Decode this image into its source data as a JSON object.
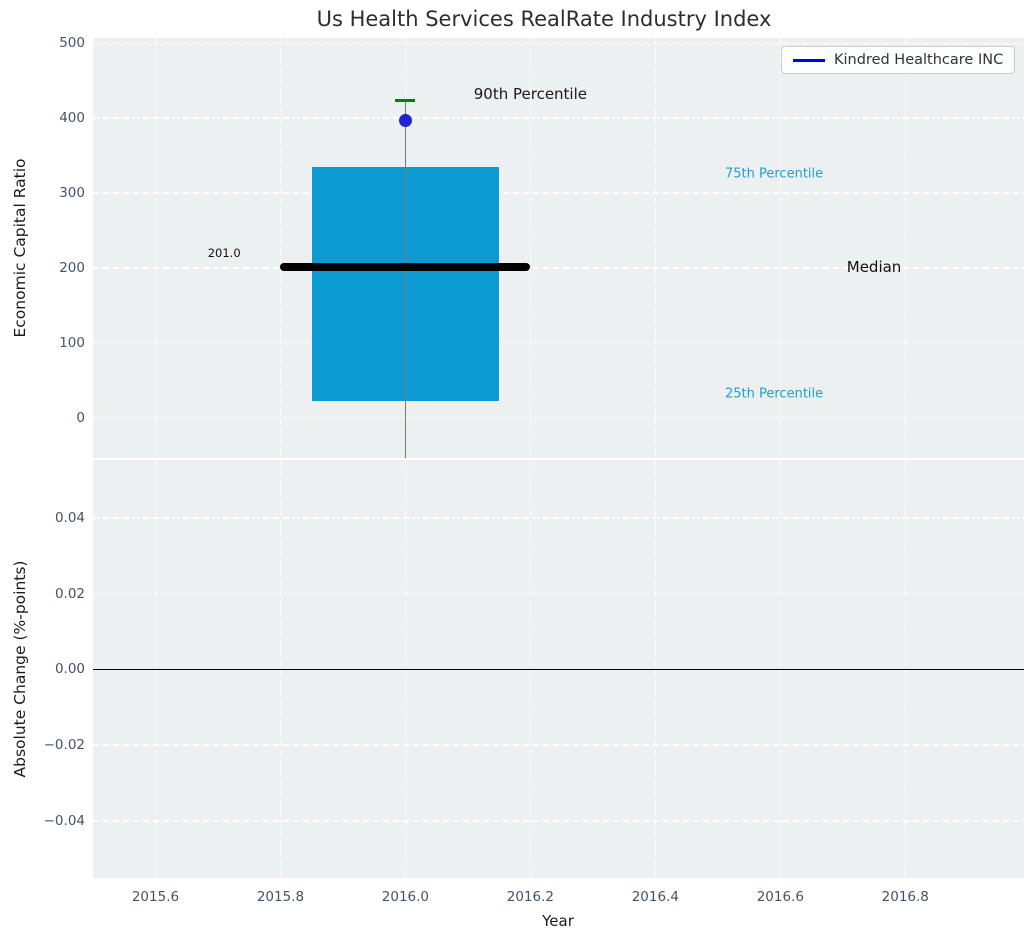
{
  "legend": {
    "label": "Kindred Healthcare INC",
    "line_color": "#0000ee"
  },
  "colors": {
    "axes_background": "#ecf0f1",
    "grid": "#ffffff",
    "box_fill": "#0c9ad2",
    "median_line": "#000000",
    "percentile_90_marker": "#008000",
    "company_marker": "#2121d6",
    "center_line": "#7a7a7a",
    "zero_line": "#000000",
    "tick_label": "#44536b",
    "percentile_text": "#1f9fd4"
  },
  "chart_data": [
    {
      "type": "box",
      "title": "Us Health Services RealRate Industry Index",
      "ylabel": "Economic Capital Ratio",
      "grid": "on",
      "xlim": [
        2015.5,
        2016.99
      ],
      "ylim": [
        -54,
        507
      ],
      "yticks": [
        0,
        100,
        200,
        300,
        400,
        500
      ],
      "ytick_labels": [
        "0",
        "100",
        "200",
        "300",
        "400",
        "500"
      ],
      "box": {
        "x": 2016.0,
        "q25": 22,
        "median": 201,
        "q75": 335,
        "p90": 423,
        "box_halfwidth": 0.15,
        "median_halfwidth": 0.2
      },
      "company_point": {
        "name": "Kindred Healthcare INC",
        "x": 2016.0,
        "y": 397
      },
      "annotations": [
        {
          "name": "annotation-90th-percentile",
          "text": "90th Percentile",
          "x": 2016.2,
          "y": 432,
          "color": "#1a1a1a",
          "size": 15
        },
        {
          "name": "annotation-75th-percentile",
          "text": "75th Percentile",
          "x": 2016.59,
          "y": 326,
          "color": "#1f9fd4",
          "size": 13
        },
        {
          "name": "annotation-median",
          "text": "Median",
          "x": 2016.75,
          "y": 201,
          "color": "#111111",
          "size": 15
        },
        {
          "name": "annotation-25th-percentile",
          "text": "25th Percentile",
          "x": 2016.59,
          "y": 31,
          "color": "#1f9fd4",
          "size": 13
        },
        {
          "name": "annotation-median-value",
          "text": "201.0",
          "x": 2015.71,
          "y": 220,
          "color": "#111111",
          "size": 11.5
        }
      ]
    },
    {
      "type": "line",
      "ylabel": "Absolute Change (%-points)",
      "xlabel": "Year",
      "grid": "on",
      "xlim": [
        2015.5,
        2016.99
      ],
      "ylim": [
        -0.0551,
        0.0553
      ],
      "yticks": [
        -0.04,
        -0.02,
        0.0,
        0.02,
        0.04
      ],
      "ytick_labels": [
        "−0.04",
        "−0.02",
        "0.00",
        "0.02",
        "0.04"
      ],
      "xticks": [
        2015.6,
        2015.8,
        2016.0,
        2016.2,
        2016.4,
        2016.6,
        2016.8
      ],
      "xtick_labels": [
        "2015.6",
        "2015.8",
        "2016.0",
        "2016.2",
        "2016.4",
        "2016.6",
        "2016.8"
      ],
      "zero_line_y": 0.0
    }
  ]
}
